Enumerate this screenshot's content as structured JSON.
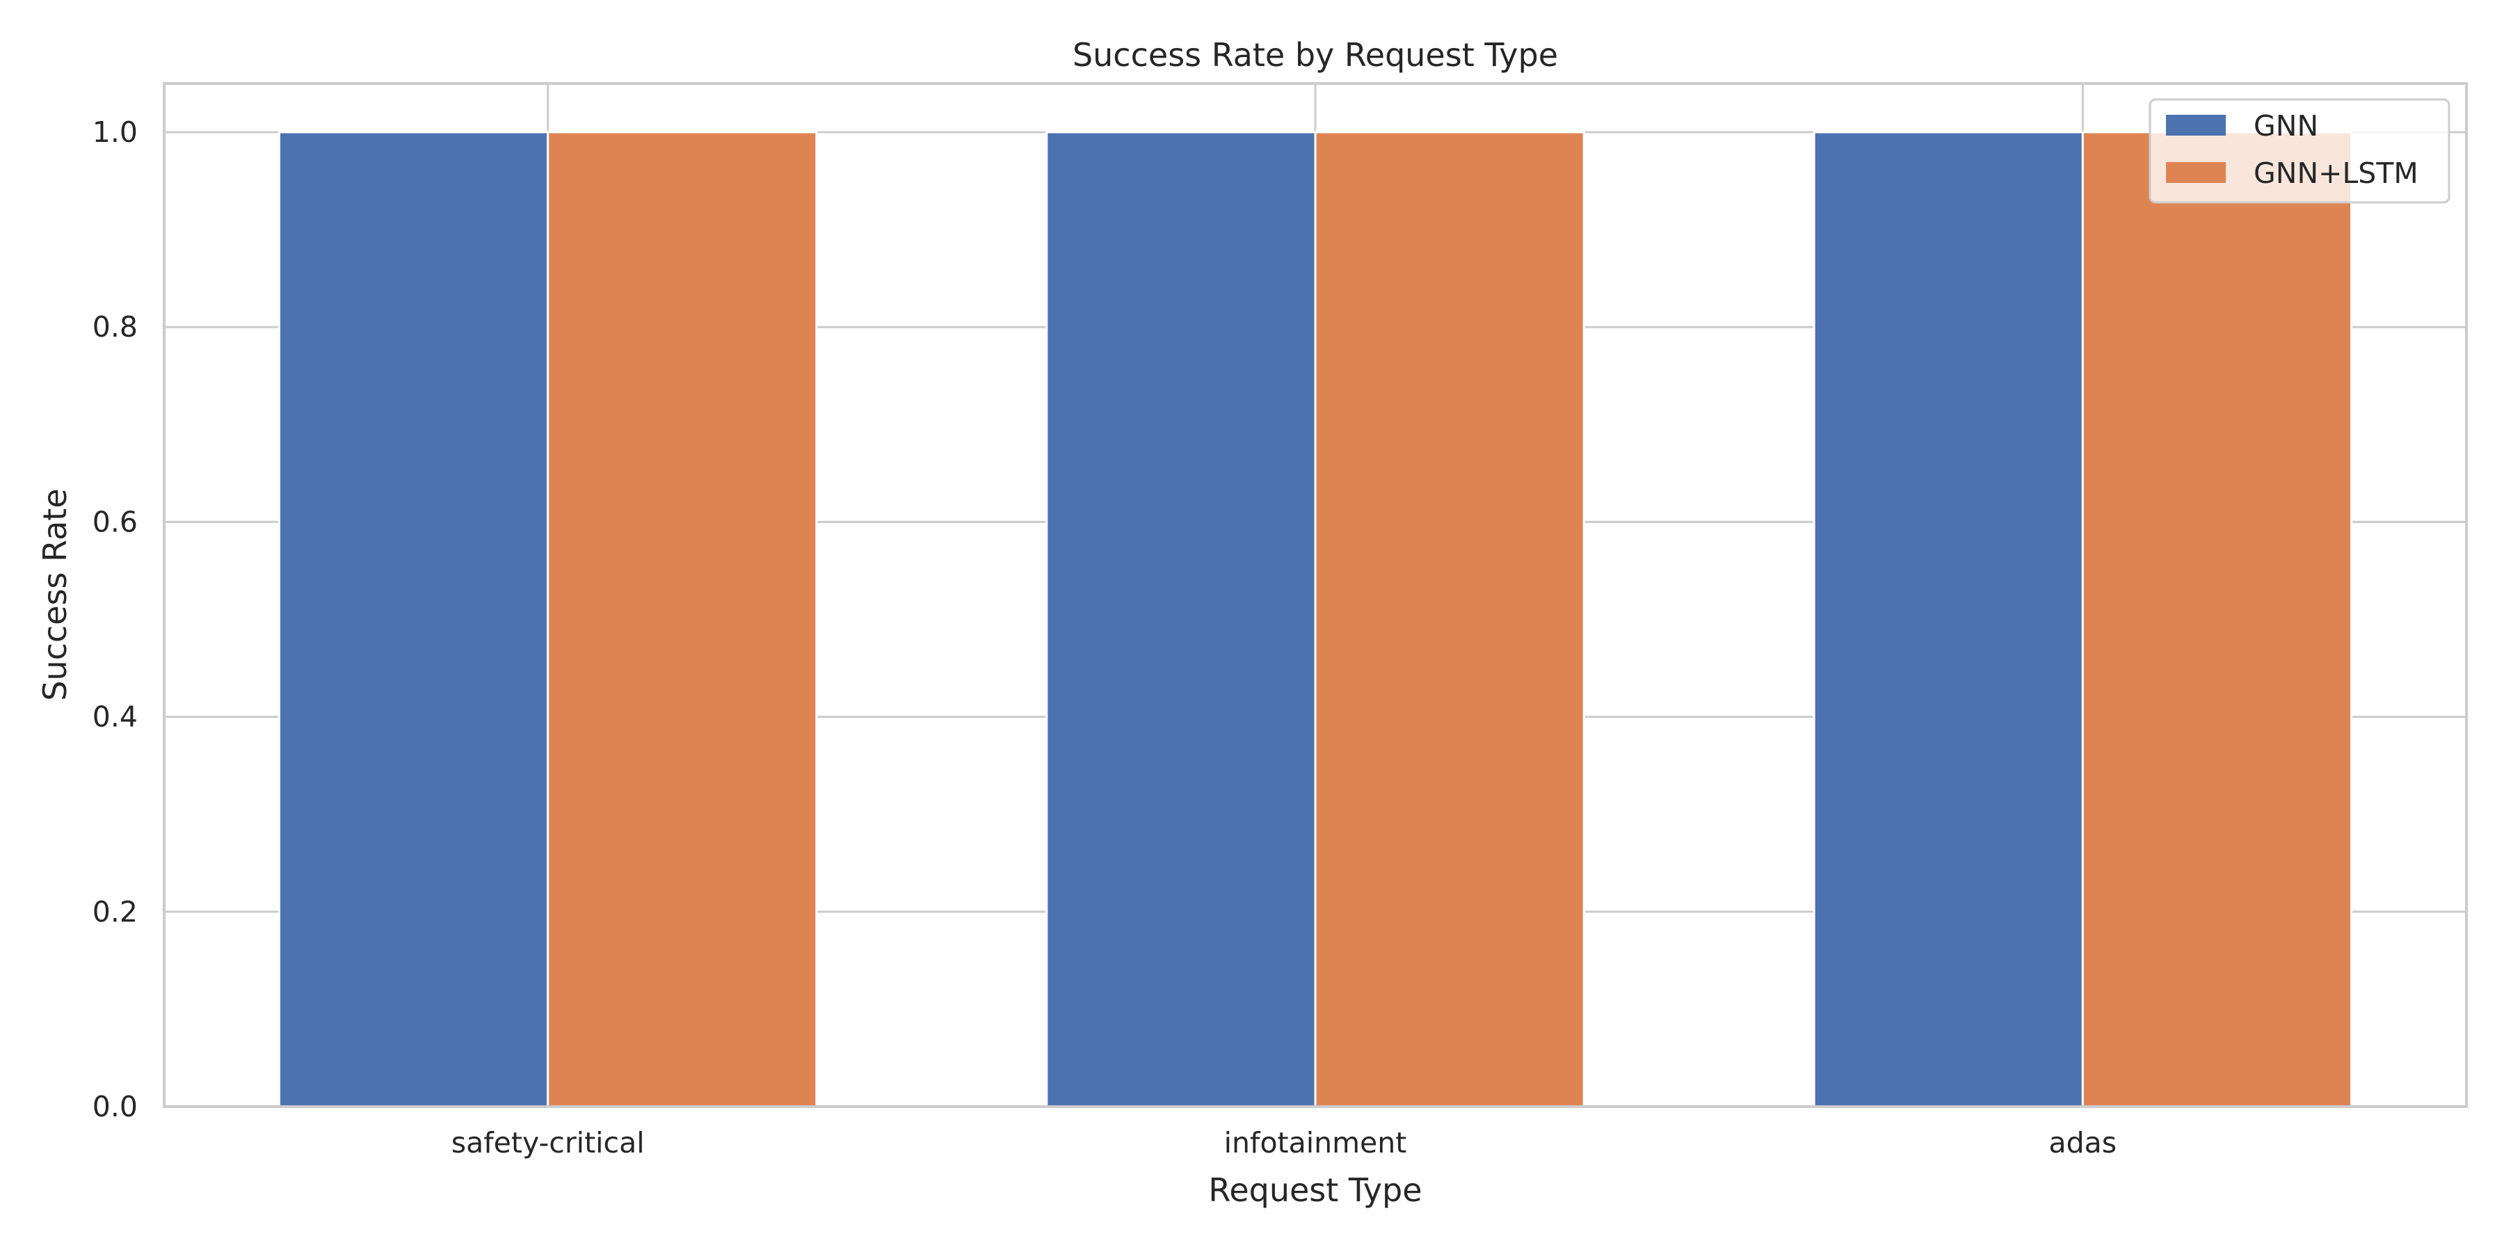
{
  "chart_data": {
    "type": "bar",
    "title": "Success Rate by Request Type",
    "xlabel": "Request Type",
    "ylabel": "Success Rate",
    "categories": [
      "safety-critical",
      "infotainment",
      "adas"
    ],
    "series": [
      {
        "name": "GNN",
        "values": [
          1.0,
          1.0,
          1.0
        ],
        "color": "#4c72b0"
      },
      {
        "name": "GNN+LSTM",
        "values": [
          1.0,
          1.0,
          1.0
        ],
        "color": "#dd8452"
      }
    ],
    "ylim": [
      0,
      1.05
    ],
    "yticks": [
      "0.0",
      "0.2",
      "0.4",
      "0.6",
      "0.8",
      "1.0"
    ],
    "grid": true,
    "legend_position": "top-right"
  }
}
